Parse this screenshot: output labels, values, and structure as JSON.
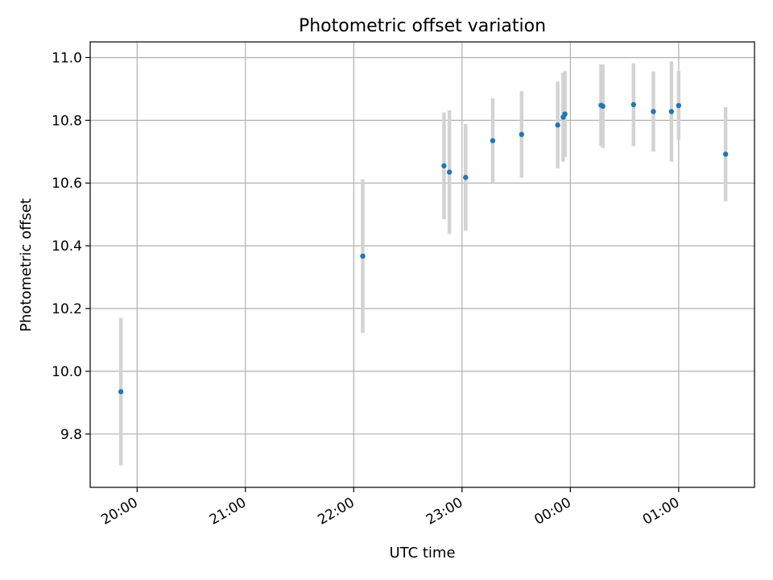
{
  "chart_data": {
    "type": "scatter",
    "title": "Photometric offset variation",
    "xlabel": "UTC time",
    "ylabel": "Photometric offset",
    "x_is_time": true,
    "x_ticks": [
      "20:00",
      "21:00",
      "22:00",
      "23:00",
      "00:00",
      "01:00"
    ],
    "x_ticks_min": [
      1200,
      1260,
      1320,
      1380,
      1440,
      1500
    ],
    "xlim_min": [
      1174,
      1542
    ],
    "y_ticks": [
      "9.8",
      "10.0",
      "10.2",
      "10.4",
      "10.6",
      "10.8",
      "11.0"
    ],
    "y_tick_values": [
      9.8,
      10.0,
      10.2,
      10.4,
      10.6,
      10.8,
      11.0
    ],
    "ylim": [
      9.63,
      11.05
    ],
    "grid": true,
    "colors": {
      "marker": "#1f77b4",
      "errorbar": "#d3d3d3",
      "grid": "#b0b0b0"
    },
    "points": [
      {
        "t": "19:51",
        "x": 1191,
        "y": 9.935,
        "err": 0.235
      },
      {
        "t": "22:05",
        "x": 1325,
        "y": 10.367,
        "err": 0.245
      },
      {
        "t": "22:50",
        "x": 1370,
        "y": 10.655,
        "err": 0.17
      },
      {
        "t": "22:53",
        "x": 1373,
        "y": 10.635,
        "err": 0.197
      },
      {
        "t": "23:02",
        "x": 1382,
        "y": 10.618,
        "err": 0.17
      },
      {
        "t": "23:17",
        "x": 1397,
        "y": 10.735,
        "err": 0.135
      },
      {
        "t": "23:33",
        "x": 1413,
        "y": 10.755,
        "err": 0.138
      },
      {
        "t": "23:53",
        "x": 1433,
        "y": 10.785,
        "err": 0.138
      },
      {
        "t": "23:56",
        "x": 1436,
        "y": 10.81,
        "err": 0.142
      },
      {
        "t": "23:57",
        "x": 1437,
        "y": 10.82,
        "err": 0.137
      },
      {
        "t": "00:17",
        "x": 1457,
        "y": 10.848,
        "err": 0.13
      },
      {
        "t": "00:18",
        "x": 1458,
        "y": 10.845,
        "err": 0.133
      },
      {
        "t": "00:35",
        "x": 1475,
        "y": 10.85,
        "err": 0.132
      },
      {
        "t": "00:46",
        "x": 1486,
        "y": 10.828,
        "err": 0.128
      },
      {
        "t": "00:56",
        "x": 1496,
        "y": 10.828,
        "err": 0.16
      },
      {
        "t": "01:00",
        "x": 1500,
        "y": 10.847,
        "err": 0.11
      },
      {
        "t": "01:26",
        "x": 1526,
        "y": 10.692,
        "err": 0.15
      }
    ]
  }
}
